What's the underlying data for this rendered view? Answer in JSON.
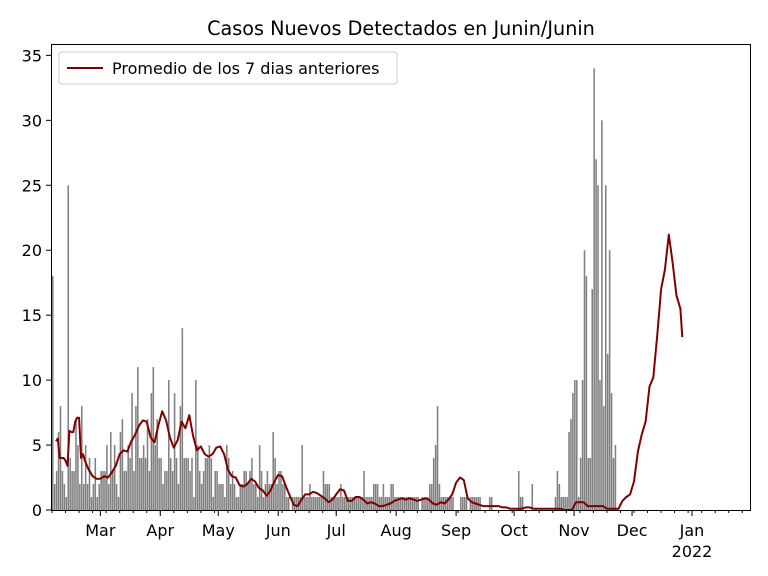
{
  "chart_data": {
    "type": "bar",
    "title": "Casos Nuevos Detectados en Junin/Junin",
    "xlabel": "",
    "ylabel": "",
    "ylim": [
      0,
      35.8
    ],
    "yticks": [
      0,
      5,
      10,
      15,
      20,
      25,
      30,
      35
    ],
    "x_range": [
      "2021-02-04",
      "2022-01-31"
    ],
    "xticks": [
      {
        "date": "2021-03-01",
        "label": "Mar"
      },
      {
        "date": "2021-04-01",
        "label": "Apr"
      },
      {
        "date": "2021-05-01",
        "label": "May"
      },
      {
        "date": "2021-06-01",
        "label": "Jun"
      },
      {
        "date": "2021-07-01",
        "label": "Jul"
      },
      {
        "date": "2021-08-01",
        "label": "Aug"
      },
      {
        "date": "2021-09-01",
        "label": "Sep"
      },
      {
        "date": "2021-10-01",
        "label": "Oct"
      },
      {
        "date": "2021-11-01",
        "label": "Nov"
      },
      {
        "date": "2021-12-01",
        "label": "Dec"
      },
      {
        "date": "2022-01-01",
        "label": "Jan"
      }
    ],
    "year_label": "2022",
    "legend": {
      "label": "Promedio de los 7 dias anteriores",
      "placement": "upper-left"
    },
    "grid": false,
    "series": [
      {
        "kind": "bar",
        "color": "#808080",
        "start": "2021-02-04",
        "values": [
          18,
          2,
          3,
          6,
          8,
          3,
          2,
          1,
          25,
          4,
          3,
          3,
          7,
          5,
          2,
          8,
          2,
          5,
          2,
          4,
          1,
          2,
          4,
          1,
          2,
          3,
          3,
          3,
          5,
          2,
          6,
          3,
          5,
          2,
          1,
          6,
          7,
          3,
          3,
          5,
          4,
          9,
          3,
          8,
          11,
          4,
          4,
          5,
          4,
          7,
          3,
          9,
          11,
          5,
          7,
          4,
          4,
          2,
          3,
          3,
          10,
          4,
          3,
          9,
          4,
          2,
          8,
          14,
          4,
          4,
          4,
          3,
          4,
          1,
          10,
          5,
          3,
          2,
          3,
          4,
          4,
          5,
          4,
          1,
          3,
          3,
          2,
          2,
          2,
          1,
          5,
          4,
          2,
          3,
          2,
          1,
          1,
          2,
          2,
          3,
          3,
          2,
          3,
          4,
          2,
          2,
          1,
          5,
          3,
          1,
          2,
          3,
          2,
          2,
          6,
          4,
          2,
          3,
          3,
          2,
          2,
          1,
          1,
          0,
          1,
          1,
          1,
          1,
          1,
          5,
          1,
          1,
          1,
          2,
          1,
          1,
          1,
          1,
          1,
          1,
          3,
          2,
          2,
          2,
          1,
          1,
          1,
          1,
          1,
          2,
          1,
          1,
          1,
          1,
          1,
          1,
          1,
          1,
          1,
          1,
          1,
          3,
          1,
          1,
          1,
          1,
          2,
          2,
          2,
          1,
          1,
          2,
          1,
          1,
          1,
          2,
          2,
          1,
          1,
          1,
          1,
          1,
          1,
          1,
          1,
          1,
          1,
          1,
          1,
          1,
          0,
          1,
          1,
          1,
          1,
          2,
          2,
          4,
          5,
          8,
          2,
          1,
          1,
          1,
          1,
          1,
          1,
          1,
          0,
          0,
          0,
          1,
          1,
          1,
          1,
          0,
          1,
          1,
          1,
          1,
          1,
          1,
          0,
          0,
          0,
          0,
          1,
          1,
          0,
          0,
          0,
          0,
          0,
          0,
          0,
          0,
          0,
          0,
          0,
          0,
          0,
          3,
          1,
          1,
          0,
          0,
          0,
          0,
          2,
          0,
          0,
          0,
          0,
          0,
          0,
          0,
          0,
          0,
          0,
          0,
          1,
          3,
          2,
          1,
          1,
          1,
          1,
          6,
          7,
          9,
          10,
          10,
          1,
          4,
          10,
          20,
          18,
          4,
          4,
          17,
          34,
          27,
          25,
          10,
          30,
          8,
          25,
          12,
          20,
          9,
          4,
          5
        ]
      },
      {
        "kind": "line",
        "name": "Promedio de los 7 dias anteriores",
        "color": "#800000",
        "start": "2021-02-06",
        "points": [
          [
            0,
            5.3
          ],
          [
            1,
            5.5
          ],
          [
            2,
            4
          ],
          [
            3,
            4
          ],
          [
            4,
            4
          ],
          [
            5,
            3.8
          ],
          [
            6,
            3.4
          ],
          [
            7,
            6.1
          ],
          [
            8,
            6
          ],
          [
            9,
            6
          ],
          [
            10,
            6.8
          ],
          [
            11,
            7.1
          ],
          [
            12,
            7.1
          ],
          [
            13,
            4
          ],
          [
            14,
            4.3
          ],
          [
            15,
            3.8
          ],
          [
            17,
            3.1
          ],
          [
            19,
            2.6
          ],
          [
            21,
            2.4
          ],
          [
            23,
            2.4
          ],
          [
            25,
            2.6
          ],
          [
            27,
            2.5
          ],
          [
            29,
            2.9
          ],
          [
            31,
            3.4
          ],
          [
            33,
            4.3
          ],
          [
            35,
            4.6
          ],
          [
            37,
            4.5
          ],
          [
            39,
            5.3
          ],
          [
            41,
            5.8
          ],
          [
            43,
            6.5
          ],
          [
            45,
            6.9
          ],
          [
            47,
            6.8
          ],
          [
            49,
            5.6
          ],
          [
            51,
            5.2
          ],
          [
            53,
            6.5
          ],
          [
            55,
            7.6
          ],
          [
            57,
            6.9
          ],
          [
            59,
            5.6
          ],
          [
            61,
            4.8
          ],
          [
            63,
            5.4
          ],
          [
            65,
            6.8
          ],
          [
            67,
            6.3
          ],
          [
            69,
            7.3
          ],
          [
            71,
            5.7
          ],
          [
            73,
            4.6
          ],
          [
            75,
            4.9
          ],
          [
            77,
            4.3
          ],
          [
            79,
            4.1
          ],
          [
            81,
            4.3
          ],
          [
            83,
            4.8
          ],
          [
            85,
            4.9
          ],
          [
            87,
            4.3
          ],
          [
            89,
            3.1
          ],
          [
            91,
            2.6
          ],
          [
            93,
            2.5
          ],
          [
            95,
            1.9
          ],
          [
            97,
            1.8
          ],
          [
            99,
            2
          ],
          [
            101,
            2.4
          ],
          [
            103,
            2.2
          ],
          [
            105,
            1.7
          ],
          [
            107,
            1.5
          ],
          [
            109,
            1.1
          ],
          [
            111,
            1.5
          ],
          [
            113,
            2.2
          ],
          [
            115,
            2.7
          ],
          [
            117,
            2.6
          ],
          [
            119,
            1.8
          ],
          [
            121,
            1.1
          ],
          [
            123,
            0.4
          ],
          [
            125,
            0.3
          ],
          [
            127,
            0.8
          ],
          [
            129,
            1.2
          ],
          [
            131,
            1.2
          ],
          [
            133,
            1.4
          ],
          [
            135,
            1.3
          ],
          [
            137,
            1.1
          ],
          [
            139,
            0.9
          ],
          [
            141,
            0.6
          ],
          [
            143,
            0.8
          ],
          [
            145,
            1.2
          ],
          [
            147,
            1.6
          ],
          [
            149,
            1.5
          ],
          [
            151,
            0.7
          ],
          [
            153,
            0.7
          ],
          [
            155,
            1
          ],
          [
            157,
            1
          ],
          [
            159,
            0.8
          ],
          [
            161,
            0.5
          ],
          [
            163,
            0.6
          ],
          [
            165,
            0.5
          ],
          [
            167,
            0.3
          ],
          [
            169,
            0.3
          ],
          [
            171,
            0.4
          ],
          [
            173,
            0.5
          ],
          [
            175,
            0.7
          ],
          [
            177,
            0.8
          ],
          [
            179,
            0.9
          ],
          [
            181,
            0.8
          ],
          [
            183,
            0.9
          ],
          [
            185,
            0.8
          ],
          [
            187,
            0.7
          ],
          [
            189,
            0.8
          ],
          [
            191,
            0.9
          ],
          [
            193,
            0.8
          ],
          [
            195,
            0.5
          ],
          [
            197,
            0.4
          ],
          [
            199,
            0.6
          ],
          [
            201,
            0.5
          ],
          [
            203,
            0.8
          ],
          [
            205,
            1.2
          ],
          [
            207,
            2.1
          ],
          [
            209,
            2.5
          ],
          [
            211,
            2.3
          ],
          [
            213,
            0.9
          ],
          [
            215,
            0.6
          ],
          [
            217,
            0.5
          ],
          [
            219,
            0.4
          ],
          [
            221,
            0.3
          ],
          [
            223,
            0.3
          ],
          [
            225,
            0.3
          ],
          [
            227,
            0.3
          ],
          [
            229,
            0.3
          ],
          [
            231,
            0.2
          ],
          [
            233,
            0.2
          ],
          [
            235,
            0.1
          ],
          [
            237,
            0.1
          ],
          [
            239,
            0.1
          ],
          [
            241,
            0.1
          ],
          [
            243,
            0.2
          ],
          [
            245,
            0.2
          ],
          [
            247,
            0.1
          ],
          [
            249,
            0.1
          ],
          [
            251,
            0.1
          ],
          [
            253,
            0.1
          ],
          [
            255,
            0.1
          ],
          [
            257,
            0.1
          ],
          [
            259,
            0.1
          ],
          [
            261,
            0.1
          ],
          [
            263,
            0
          ],
          [
            265,
            0
          ],
          [
            267,
            0
          ],
          [
            269,
            0.6
          ],
          [
            271,
            0.6
          ],
          [
            273,
            0.6
          ],
          [
            275,
            0.3
          ],
          [
            277,
            0.3
          ],
          [
            279,
            0.3
          ],
          [
            281,
            0.3
          ],
          [
            283,
            0.3
          ],
          [
            285,
            0.1
          ],
          [
            287,
            0.1
          ],
          [
            289,
            0.1
          ],
          [
            291,
            0.1
          ],
          [
            293,
            0.7
          ],
          [
            295,
            1
          ],
          [
            297,
            1.2
          ],
          [
            299,
            2.2
          ],
          [
            301,
            4.5
          ],
          [
            303,
            5.8
          ],
          [
            305,
            6.8
          ],
          [
            307,
            9.5
          ],
          [
            309,
            10.2
          ],
          [
            311,
            13.4
          ],
          [
            313,
            17
          ],
          [
            315,
            18.5
          ],
          [
            317,
            21.2
          ],
          [
            319,
            19
          ],
          [
            321,
            16.5
          ],
          [
            323,
            15.5
          ],
          [
            324,
            13.3
          ]
        ]
      }
    ]
  }
}
